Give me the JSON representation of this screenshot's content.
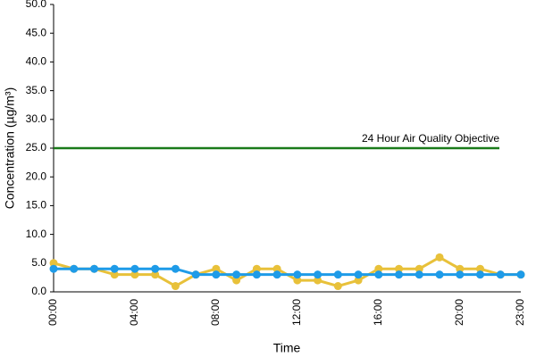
{
  "chart_data": {
    "type": "line",
    "y_label": "Concentration (µg/m³)",
    "x_label": "Time",
    "categories": [
      "00:00",
      null,
      null,
      null,
      "04:00",
      null,
      null,
      null,
      "08:00",
      null,
      null,
      null,
      "12:00",
      null,
      null,
      null,
      "16:00",
      null,
      null,
      null,
      "20:00",
      null,
      null,
      "23:00"
    ],
    "series": [
      {
        "color": "#e8c13a",
        "values": [
          5,
          4,
          4,
          3,
          3,
          3,
          1,
          3,
          4,
          2,
          4,
          4,
          2,
          2,
          1,
          2,
          4,
          4,
          4,
          6,
          4,
          4,
          3,
          3
        ]
      },
      {
        "color": "#1e9be8",
        "values": [
          4,
          4,
          4,
          4,
          4,
          4,
          4,
          3,
          3,
          3,
          3,
          3,
          3,
          3,
          3,
          3,
          3,
          3,
          3,
          3,
          3,
          3,
          3,
          3
        ]
      }
    ],
    "reference_line": {
      "value": 25,
      "label": "24 Hour Air Quality Objective",
      "color": "#1a7a1a"
    },
    "ylim": [
      0,
      50
    ],
    "yticks": [
      {
        "value": 0,
        "label": "0.0"
      },
      {
        "value": 5,
        "label": "5.0"
      },
      {
        "value": 10,
        "label": "10.0"
      },
      {
        "value": 15,
        "label": "15.0"
      },
      {
        "value": 20,
        "label": "20.0"
      },
      {
        "value": 25,
        "label": "25.0"
      },
      {
        "value": 30,
        "label": "30.0"
      },
      {
        "value": 35,
        "label": "35.0"
      },
      {
        "value": 40,
        "label": "40.0"
      },
      {
        "value": 45,
        "label": "45.0"
      },
      {
        "value": 50,
        "label": "50.0"
      }
    ]
  }
}
